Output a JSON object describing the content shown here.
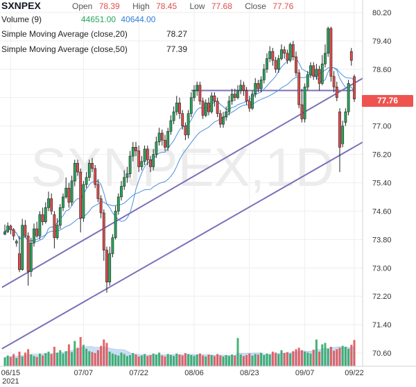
{
  "header": {
    "symbol": "SXNPEX",
    "open_label": "Open",
    "open": "78.39",
    "high_label": "High",
    "high": "78.45",
    "low_label": "Low",
    "low": "77.68",
    "close_label": "Close",
    "close": "77.76",
    "volume_label": "Volume (9)",
    "volume_value": "44651.00",
    "volume_avg": "40644.00",
    "sma20_label": "Simple Moving Average (close,20)",
    "sma20_value": "78.27",
    "sma50_label": "Simple Moving Average (close,50)",
    "sma50_value": "77.39"
  },
  "price_tag": "77.76",
  "watermark": "SXNPEX,1D",
  "colors": {
    "up": "#26a65b",
    "down": "#e14b4b",
    "ma": "#4a90d9",
    "trend": "#7b70b8",
    "volume": "#8fb8e8",
    "grid": "#eeeeee"
  },
  "chart_data": {
    "type": "candlestick",
    "ylim": [
      70.2,
      80.35
    ],
    "yticks": [
      "80.20",
      "79.40",
      "78.60",
      "77.80",
      "77.00",
      "76.20",
      "75.40",
      "74.60",
      "73.80",
      "73.00",
      "72.20",
      "71.40",
      "70.60"
    ],
    "x_tick_labels": [
      {
        "label": "06/15",
        "sub": "2021",
        "index": 2
      },
      {
        "label": "07/07",
        "index": 27
      },
      {
        "label": "07/22",
        "index": 46
      },
      {
        "label": "08/06",
        "index": 65
      },
      {
        "label": "08/23",
        "index": 84
      },
      {
        "label": "09/07",
        "index": 103
      },
      {
        "label": "09/22",
        "index": 120
      }
    ],
    "candles": [
      [
        73.95,
        74.02,
        74.22,
        73.92
      ],
      [
        74.02,
        74.18,
        74.28,
        73.98
      ],
      [
        74.18,
        74.08,
        74.22,
        73.95
      ],
      [
        74.08,
        73.9,
        74.12,
        73.78
      ],
      [
        73.7,
        73.75,
        73.8,
        73.6
      ],
      [
        73.4,
        72.95,
        73.9,
        72.88
      ],
      [
        72.95,
        74.2,
        74.38,
        72.92
      ],
      [
        74.2,
        73.9,
        74.35,
        73.85
      ],
      [
        73.9,
        72.9,
        74.0,
        72.5
      ],
      [
        72.9,
        73.7,
        73.85,
        72.75
      ],
      [
        73.7,
        74.1,
        74.25,
        73.6
      ],
      [
        74.1,
        73.9,
        74.3,
        73.85
      ],
      [
        73.9,
        74.5,
        74.6,
        73.8
      ],
      [
        74.5,
        74.3,
        74.7,
        74.2
      ],
      [
        74.3,
        74.7,
        74.85,
        74.25
      ],
      [
        74.7,
        74.95,
        75.15,
        74.6
      ],
      [
        74.95,
        74.6,
        75.1,
        74.5
      ],
      [
        74.5,
        73.85,
        74.6,
        73.55
      ],
      [
        73.85,
        74.2,
        74.4,
        73.8
      ],
      [
        74.2,
        74.7,
        74.8,
        74.1
      ],
      [
        74.7,
        75.0,
        75.1,
        74.6
      ],
      [
        75.0,
        75.25,
        75.55,
        74.95
      ],
      [
        75.25,
        74.85,
        75.4,
        74.7
      ],
      [
        74.85,
        75.45,
        75.6,
        74.75
      ],
      [
        75.45,
        75.95,
        76.05,
        75.3
      ],
      [
        75.95,
        75.7,
        76.05,
        75.6
      ],
      [
        75.7,
        74.4,
        75.8,
        74.0
      ],
      [
        74.4,
        75.35,
        75.45,
        74.3
      ],
      [
        75.35,
        75.55,
        75.7,
        75.25
      ],
      [
        75.55,
        75.95,
        76.05,
        75.45
      ],
      [
        75.95,
        75.8,
        76.1,
        75.7
      ],
      [
        75.8,
        75.35,
        75.9,
        75.25
      ],
      [
        75.35,
        74.95,
        75.5,
        74.85
      ],
      [
        74.95,
        74.55,
        75.05,
        74.4
      ],
      [
        74.55,
        73.5,
        74.65,
        73.2
      ],
      [
        73.5,
        72.6,
        73.6,
        72.3
      ],
      [
        72.6,
        73.4,
        73.6,
        72.5
      ],
      [
        73.4,
        73.85,
        73.95,
        73.3
      ],
      [
        73.85,
        74.6,
        74.75,
        73.8
      ],
      [
        74.6,
        75.0,
        75.1,
        74.5
      ],
      [
        75.0,
        75.3,
        75.45,
        74.9
      ],
      [
        75.3,
        75.55,
        75.75,
        75.2
      ],
      [
        75.55,
        75.65,
        75.85,
        75.4
      ],
      [
        75.65,
        76.15,
        76.3,
        75.55
      ],
      [
        76.15,
        76.4,
        76.55,
        76.0
      ],
      [
        76.4,
        76.3,
        76.55,
        76.15
      ],
      [
        76.3,
        75.85,
        76.45,
        75.7
      ],
      [
        75.85,
        76.0,
        76.15,
        75.75
      ],
      [
        76.0,
        76.35,
        76.45,
        75.9
      ],
      [
        76.35,
        76.05,
        76.45,
        75.9
      ],
      [
        76.05,
        75.85,
        76.15,
        75.7
      ],
      [
        75.85,
        76.2,
        76.35,
        75.75
      ],
      [
        76.2,
        76.55,
        76.7,
        76.1
      ],
      [
        76.55,
        76.8,
        76.95,
        76.45
      ],
      [
        76.8,
        76.6,
        76.9,
        76.45
      ],
      [
        76.6,
        76.4,
        76.75,
        76.3
      ],
      [
        76.4,
        76.85,
        76.95,
        76.3
      ],
      [
        76.85,
        77.15,
        77.3,
        76.75
      ],
      [
        77.15,
        77.4,
        77.55,
        77.05
      ],
      [
        77.4,
        77.65,
        77.85,
        77.3
      ],
      [
        77.65,
        77.35,
        77.8,
        77.2
      ],
      [
        77.35,
        77.0,
        77.45,
        76.9
      ],
      [
        77.0,
        76.75,
        77.1,
        76.6
      ],
      [
        76.75,
        77.35,
        77.45,
        76.65
      ],
      [
        77.35,
        77.8,
        77.95,
        77.25
      ],
      [
        77.8,
        78.0,
        78.15,
        77.7
      ],
      [
        78.0,
        78.15,
        78.25,
        77.85
      ],
      [
        78.15,
        77.7,
        78.25,
        77.6
      ],
      [
        77.7,
        77.3,
        77.8,
        77.2
      ],
      [
        77.3,
        77.65,
        77.75,
        77.25
      ],
      [
        77.65,
        77.4,
        77.8,
        77.3
      ],
      [
        77.4,
        77.85,
        77.95,
        77.35
      ],
      [
        77.85,
        77.7,
        77.95,
        77.55
      ],
      [
        77.7,
        77.35,
        77.8,
        77.25
      ],
      [
        77.35,
        77.05,
        77.45,
        76.95
      ],
      [
        77.05,
        77.25,
        77.4,
        76.95
      ],
      [
        77.25,
        77.4,
        77.55,
        77.15
      ],
      [
        77.4,
        77.7,
        77.85,
        77.3
      ],
      [
        77.7,
        77.9,
        78.05,
        77.6
      ],
      [
        77.9,
        77.8,
        78.05,
        77.7
      ],
      [
        77.8,
        78.0,
        78.15,
        77.75
      ],
      [
        78.0,
        78.15,
        78.3,
        77.9
      ],
      [
        78.15,
        78.0,
        78.25,
        77.85
      ],
      [
        78.0,
        77.7,
        78.1,
        77.6
      ],
      [
        77.7,
        77.5,
        77.85,
        77.4
      ],
      [
        77.5,
        77.9,
        78.0,
        77.45
      ],
      [
        77.9,
        78.2,
        78.35,
        77.8
      ],
      [
        78.2,
        78.05,
        78.3,
        77.95
      ],
      [
        78.05,
        78.3,
        78.4,
        77.95
      ],
      [
        78.3,
        78.6,
        78.75,
        78.2
      ],
      [
        78.6,
        78.9,
        79.05,
        78.5
      ],
      [
        78.9,
        79.1,
        79.25,
        78.8
      ],
      [
        79.1,
        78.85,
        79.2,
        78.7
      ],
      [
        78.85,
        78.6,
        78.95,
        78.5
      ],
      [
        78.6,
        78.9,
        79.0,
        78.5
      ],
      [
        78.9,
        79.15,
        79.3,
        78.85
      ],
      [
        79.15,
        79.05,
        79.25,
        78.9
      ],
      [
        79.05,
        78.85,
        79.15,
        78.75
      ],
      [
        78.85,
        79.3,
        79.35,
        78.8
      ],
      [
        79.3,
        78.95,
        79.4,
        78.85
      ],
      [
        78.95,
        78.5,
        79.1,
        78.4
      ],
      [
        78.5,
        77.6,
        78.6,
        77.5
      ],
      [
        77.6,
        77.2,
        78.05,
        77.1
      ],
      [
        77.2,
        78.1,
        78.2,
        77.1
      ],
      [
        78.1,
        78.45,
        78.55,
        78.0
      ],
      [
        78.45,
        78.7,
        78.8,
        78.35
      ],
      [
        78.7,
        78.4,
        78.8,
        78.3
      ],
      [
        78.4,
        78.6,
        78.75,
        78.3
      ],
      [
        78.6,
        78.2,
        78.7,
        78.0
      ],
      [
        78.2,
        78.75,
        79.0,
        78.15
      ],
      [
        78.75,
        79.05,
        79.3,
        78.65
      ],
      [
        79.05,
        79.75,
        79.8,
        78.95
      ],
      [
        79.75,
        78.4,
        79.8,
        78.25
      ],
      [
        78.4,
        78.1,
        78.55,
        77.95
      ],
      [
        78.1,
        77.8,
        78.25,
        77.7
      ],
      [
        77.4,
        76.4,
        77.5,
        75.7
      ],
      [
        76.5,
        77.0,
        77.15,
        76.4
      ],
      [
        77.1,
        77.4,
        77.5,
        77.0
      ],
      [
        77.4,
        78.2,
        78.3,
        77.3
      ],
      [
        79.1,
        78.85,
        79.2,
        78.7
      ],
      [
        78.39,
        77.76,
        78.45,
        77.68
      ]
    ],
    "volume": [
      18,
      22,
      19,
      25,
      17,
      30,
      20,
      28,
      35,
      24,
      21,
      19,
      26,
      22,
      27,
      30,
      25,
      40,
      28,
      33,
      26,
      31,
      45,
      29,
      52,
      38,
      60,
      44,
      36,
      31,
      29,
      27,
      33,
      42,
      55,
      48,
      30,
      26,
      24,
      22,
      28,
      25,
      21,
      23,
      27,
      24,
      20,
      22,
      25,
      21,
      23,
      26,
      24,
      28,
      22,
      20,
      25,
      23,
      21,
      26,
      24,
      22,
      27,
      25,
      23,
      21,
      24,
      26,
      22,
      20,
      24,
      23,
      21,
      25,
      22,
      20,
      23,
      21,
      24,
      22,
      58,
      24,
      21,
      23,
      26,
      22,
      25,
      24,
      27,
      23,
      26,
      24,
      30,
      28,
      25,
      33,
      27,
      29,
      26,
      31,
      35,
      38,
      33,
      30,
      28,
      26,
      34,
      55,
      30,
      45,
      48,
      36,
      40,
      32,
      35,
      38,
      42,
      40,
      36,
      44,
      54
    ]
  }
}
